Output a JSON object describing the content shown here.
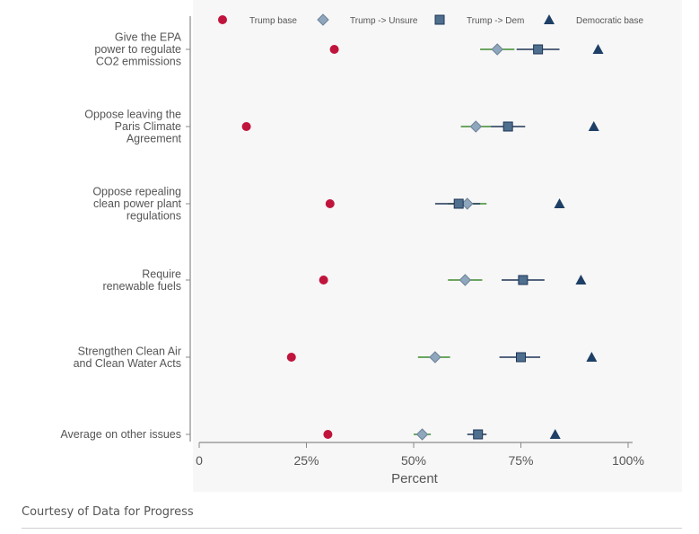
{
  "chart_data": {
    "type": "scatter",
    "xlabel": "Percent",
    "xticks": [
      "0",
      "25%",
      "50%",
      "75%",
      "100%"
    ],
    "xlim": [
      0,
      100
    ],
    "categories": [
      "Give the EPA power to regulate CO2 emmissions",
      "Oppose leaving the Paris Climate Agreement",
      "Oppose repealing clean power plant regulations",
      "Require renewable fuels",
      "Strengthen Clean Air and Clean Water Acts",
      "Average on other issues"
    ],
    "category_lines": [
      [
        "Give the EPA",
        "power to regulate",
        "CO2 emmissions"
      ],
      [
        "Oppose leaving the",
        "Paris Climate",
        "Agreement"
      ],
      [
        "Oppose repealing",
        "clean power plant",
        "regulations"
      ],
      [
        "Require",
        "renewable fuels"
      ],
      [
        "Strengthen Clean Air",
        "and Clean Water Acts"
      ],
      [
        "Average on other issues"
      ]
    ],
    "legend_position": "top",
    "series": [
      {
        "name": "Trump base",
        "marker": "circle",
        "color": "#c0143c",
        "values": [
          31.5,
          11,
          30.5,
          29,
          21.5,
          30
        ],
        "ci": [
          [
            31.5,
            31.5
          ],
          [
            11,
            11
          ],
          [
            30.5,
            30.5
          ],
          [
            29,
            29
          ],
          [
            21.5,
            21.5
          ],
          [
            30,
            30
          ]
        ]
      },
      {
        "name": "Trump -> Unsure",
        "marker": "diamond",
        "color": "#8fa7bd",
        "ci_color": "#3d8b2f",
        "values": [
          69.5,
          64.5,
          62.5,
          62,
          55,
          52
        ],
        "ci": [
          [
            65.5,
            73.5
          ],
          [
            61,
            68
          ],
          [
            58,
            67
          ],
          [
            58,
            66
          ],
          [
            51,
            58.5
          ],
          [
            50,
            54
          ]
        ]
      },
      {
        "name": "Trump -> Dem",
        "marker": "square",
        "color": "#4f6f8f",
        "ci_color": "#1e3556",
        "values": [
          79,
          72,
          60.5,
          75.5,
          75,
          65
        ],
        "ci": [
          [
            74,
            84
          ],
          [
            68,
            76
          ],
          [
            55,
            65.5
          ],
          [
            70.5,
            80.5
          ],
          [
            70,
            79.5
          ],
          [
            62.5,
            67
          ]
        ]
      },
      {
        "name": "Democratic base",
        "marker": "triangle",
        "color": "#1e3f66",
        "values": [
          93,
          92,
          84,
          89,
          91.5,
          83
        ],
        "ci": [
          [
            93,
            93
          ],
          [
            92,
            92
          ],
          [
            84,
            84
          ],
          [
            89,
            89
          ],
          [
            91.5,
            91.5
          ],
          [
            83,
            83
          ]
        ]
      }
    ]
  },
  "credit": "Courtesy of Data for Progress"
}
